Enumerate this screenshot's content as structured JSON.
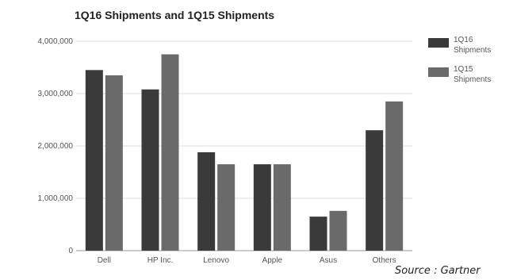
{
  "chart_data": {
    "type": "bar",
    "title": "1Q16 Shipments and 1Q15 Shipments",
    "categories": [
      "Dell",
      "HP Inc.",
      "Lenovo",
      "Apple",
      "Asus",
      "Others"
    ],
    "series": [
      {
        "name": "1Q16 Shipments",
        "values": [
          3450000,
          3080000,
          1880000,
          1650000,
          650000,
          2300000
        ]
      },
      {
        "name": "1Q15 Shipments",
        "values": [
          3350000,
          3750000,
          1650000,
          1650000,
          760000,
          2850000
        ]
      }
    ],
    "yticks": [
      "0",
      "1,000,000",
      "2,000,000",
      "3,000,000",
      "4,000,000"
    ],
    "ylim": [
      0,
      4000000
    ],
    "grid": true,
    "legend": "right",
    "colors": {
      "series1": "#3a3a3a",
      "series2": "#6a6a6a",
      "grid": "#dddddd",
      "axis": "#999999"
    }
  },
  "source": "Source : Gartner"
}
